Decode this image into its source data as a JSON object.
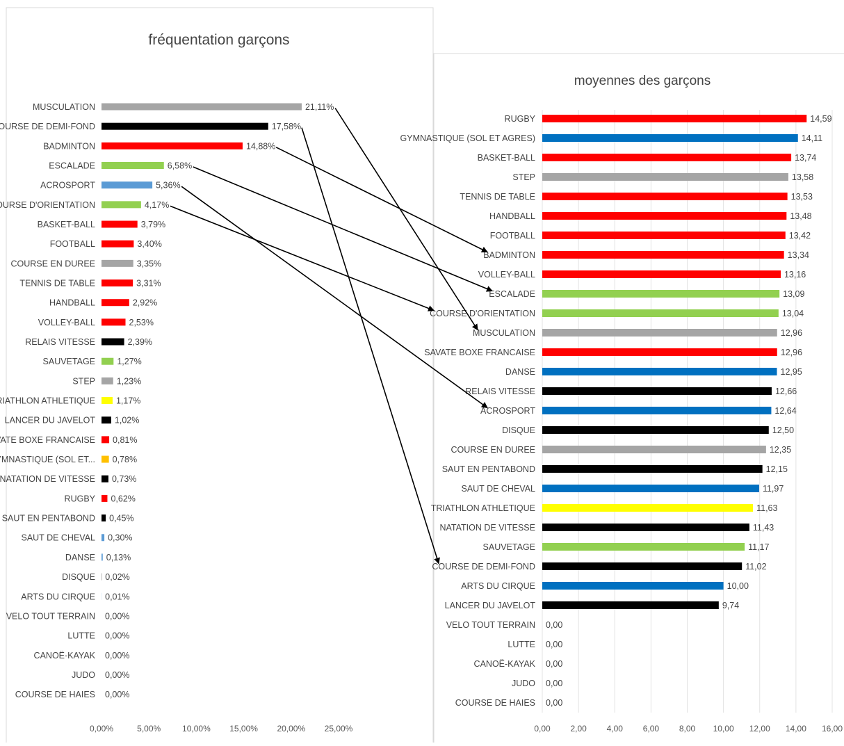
{
  "chart_data": [
    {
      "type": "bar",
      "orientation": "horizontal",
      "title": "fréquentation garçons",
      "grid": false,
      "xlim": [
        0,
        25
      ],
      "x_ticks": [
        "0,00%",
        "5,00%",
        "10,00%",
        "15,00%",
        "20,00%",
        "25,00%"
      ],
      "categories": [
        "MUSCULATION",
        "COURSE DE DEMI-FOND",
        "BADMINTON",
        "ESCALADE",
        "ACROSPORT",
        "COURSE D'ORIENTATION",
        "BASKET-BALL",
        "FOOTBALL",
        "COURSE EN DUREE",
        "TENNIS DE TABLE",
        "HANDBALL",
        "VOLLEY-BALL",
        "RELAIS VITESSE",
        "SAUVETAGE",
        "STEP",
        "TRIATHLON ATHLETIQUE",
        "LANCER DU JAVELOT",
        "SAVATE BOXE FRANCAISE",
        "GYMNASTIQUE (SOL ET...",
        "NATATION DE VITESSE",
        "RUGBY",
        "SAUT EN PENTABOND",
        "SAUT DE CHEVAL",
        "DANSE",
        "DISQUE",
        "ARTS DU CIRQUE",
        "VELO TOUT TERRAIN",
        "LUTTE",
        "CANOË-KAYAK",
        "JUDO",
        "COURSE DE HAIES"
      ],
      "values": [
        21.11,
        17.58,
        14.88,
        6.58,
        5.36,
        4.17,
        3.79,
        3.4,
        3.35,
        3.31,
        2.92,
        2.53,
        2.39,
        1.27,
        1.23,
        1.17,
        1.02,
        0.81,
        0.78,
        0.73,
        0.62,
        0.45,
        0.3,
        0.13,
        0.02,
        0.01,
        0,
        0,
        0,
        0,
        0
      ],
      "labels": [
        "21,11%",
        "17,58%",
        "14,88%",
        "6,58%",
        "5,36%",
        "4,17%",
        "3,79%",
        "3,40%",
        "3,35%",
        "3,31%",
        "2,92%",
        "2,53%",
        "2,39%",
        "1,27%",
        "1,23%",
        "1,17%",
        "1,02%",
        "0,81%",
        "0,78%",
        "0,73%",
        "0,62%",
        "0,45%",
        "0,30%",
        "0,13%",
        "0,02%",
        "0,01%",
        "0,00%",
        "0,00%",
        "0,00%",
        "0,00%",
        "0,00%"
      ],
      "colors": [
        "#a5a5a5",
        "#000000",
        "#ff0000",
        "#92d050",
        "#5b9bd5",
        "#92d050",
        "#ff0000",
        "#ff0000",
        "#a5a5a5",
        "#ff0000",
        "#ff0000",
        "#ff0000",
        "#000000",
        "#92d050",
        "#a5a5a5",
        "#ffff00",
        "#000000",
        "#ff0000",
        "#ffc000",
        "#000000",
        "#ff0000",
        "#000000",
        "#5b9bd5",
        "#5b9bd5",
        "#000000",
        "#5b9bd5",
        "#000000",
        "#ff0000",
        "#5b9bd5",
        "#ff0000",
        "#000000"
      ]
    },
    {
      "type": "bar",
      "orientation": "horizontal",
      "title": "moyennes des garçons",
      "grid": true,
      "xlim": [
        0,
        16
      ],
      "x_ticks": [
        "0,00",
        "2,00",
        "4,00",
        "6,00",
        "8,00",
        "10,00",
        "12,00",
        "14,00",
        "16,00"
      ],
      "categories": [
        "RUGBY",
        "GYMNASTIQUE (SOL ET AGRES)",
        "BASKET-BALL",
        "STEP",
        "TENNIS DE TABLE",
        "HANDBALL",
        "FOOTBALL",
        "BADMINTON",
        "VOLLEY-BALL",
        "ESCALADE",
        "COURSE D'ORIENTATION",
        "MUSCULATION",
        "SAVATE BOXE FRANCAISE",
        "DANSE",
        "RELAIS VITESSE",
        "ACROSPORT",
        "DISQUE",
        "COURSE EN DUREE",
        "SAUT EN PENTABOND",
        "SAUT DE CHEVAL",
        "TRIATHLON ATHLETIQUE",
        "NATATION DE VITESSE",
        "SAUVETAGE",
        "COURSE DE DEMI-FOND",
        "ARTS DU CIRQUE",
        "LANCER DU JAVELOT",
        "VELO TOUT TERRAIN",
        "LUTTE",
        "CANOË-KAYAK",
        "JUDO",
        "COURSE DE HAIES"
      ],
      "values": [
        14.59,
        14.11,
        13.74,
        13.58,
        13.53,
        13.48,
        13.42,
        13.34,
        13.16,
        13.09,
        13.04,
        12.96,
        12.96,
        12.95,
        12.66,
        12.64,
        12.5,
        12.35,
        12.15,
        11.97,
        11.63,
        11.43,
        11.17,
        11.02,
        10.0,
        9.74,
        0,
        0,
        0,
        0,
        0
      ],
      "labels": [
        "14,59",
        "14,11",
        "13,74",
        "13,58",
        "13,53",
        "13,48",
        "13,42",
        "13,34",
        "13,16",
        "13,09",
        "13,04",
        "12,96",
        "12,96",
        "12,95",
        "12,66",
        "12,64",
        "12,50",
        "12,35",
        "12,15",
        "11,97",
        "11,63",
        "11,43",
        "11,17",
        "11,02",
        "10,00",
        "9,74",
        "0,00",
        "0,00",
        "0,00",
        "0,00",
        "0,00"
      ],
      "colors": [
        "#ff0000",
        "#0070c0",
        "#ff0000",
        "#a5a5a5",
        "#ff0000",
        "#ff0000",
        "#ff0000",
        "#ff0000",
        "#ff0000",
        "#92d050",
        "#92d050",
        "#a5a5a5",
        "#ff0000",
        "#0070c0",
        "#000000",
        "#0070c0",
        "#000000",
        "#a5a5a5",
        "#000000",
        "#0070c0",
        "#ffff00",
        "#000000",
        "#92d050",
        "#000000",
        "#0070c0",
        "#000000",
        "#000000",
        "#ff0000",
        "#0070c0",
        "#ff0000",
        "#000000"
      ]
    }
  ],
  "arrows": [
    {
      "from": "MUSCULATION",
      "to": "MUSCULATION"
    },
    {
      "from": "COURSE DE DEMI-FOND",
      "to": "COURSE DE DEMI-FOND"
    },
    {
      "from": "BADMINTON",
      "to": "BADMINTON"
    },
    {
      "from": "ESCALADE",
      "to": "ESCALADE"
    },
    {
      "from": "ACROSPORT",
      "to": "ACROSPORT"
    },
    {
      "from": "COURSE D'ORIENTATION",
      "to": "COURSE D'ORIENTATION"
    }
  ]
}
